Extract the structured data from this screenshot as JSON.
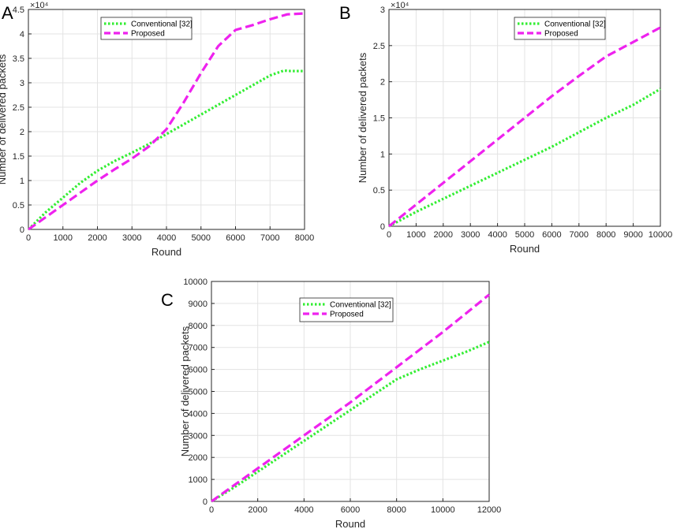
{
  "chart_data": [
    {
      "panel": "A",
      "type": "line",
      "xlabel": "Round",
      "ylabel": "Number of delivered packets",
      "xlim": [
        0,
        8000
      ],
      "ylim": [
        0,
        45000
      ],
      "y_exponent": "×10⁴",
      "xticks": [
        "0",
        "1000",
        "2000",
        "3000",
        "4000",
        "5000",
        "6000",
        "7000",
        "8000"
      ],
      "yticks": [
        "0",
        "0.5",
        "1",
        "1.5",
        "2",
        "2.5",
        "3",
        "3.5",
        "4",
        "4.5"
      ],
      "grid": true,
      "legend_position": "top-center",
      "series": [
        {
          "name": "Conventional [32]",
          "color": "#33ee33",
          "style": "dotted",
          "x": [
            0,
            500,
            1000,
            1500,
            2000,
            2500,
            3000,
            3500,
            4000,
            4500,
            5000,
            5500,
            6000,
            6500,
            7000,
            7400,
            7600,
            8000
          ],
          "y": [
            0,
            3500,
            6500,
            9500,
            12000,
            14000,
            15700,
            17500,
            19500,
            21500,
            23500,
            25500,
            27500,
            29500,
            31500,
            32500,
            32400,
            32400
          ]
        },
        {
          "name": "Proposed",
          "color": "#ee22ee",
          "style": "dashed",
          "x": [
            0,
            500,
            1000,
            1500,
            2000,
            2500,
            3000,
            3500,
            4000,
            4500,
            5000,
            5500,
            6000,
            6500,
            7000,
            7500,
            8000
          ],
          "y": [
            0,
            2500,
            5000,
            7500,
            10000,
            12300,
            14500,
            17000,
            20500,
            26000,
            32000,
            37500,
            40800,
            41800,
            43000,
            44000,
            44200
          ]
        }
      ]
    },
    {
      "panel": "B",
      "type": "line",
      "xlabel": "Round",
      "ylabel": "Number of delivered packets",
      "xlim": [
        0,
        10000
      ],
      "ylim": [
        0,
        30000
      ],
      "y_exponent": "×10⁴",
      "xticks": [
        "0",
        "1000",
        "2000",
        "3000",
        "4000",
        "5000",
        "6000",
        "7000",
        "8000",
        "9000",
        "10000"
      ],
      "yticks": [
        "0",
        "0.5",
        "1",
        "1.5",
        "2",
        "2.5",
        "3"
      ],
      "grid": true,
      "legend_position": "top-right",
      "series": [
        {
          "name": "Conventional [32]",
          "color": "#33ee33",
          "style": "dotted",
          "x": [
            0,
            1000,
            2000,
            3000,
            4000,
            5000,
            6000,
            7000,
            8000,
            9000,
            10000
          ],
          "y": [
            0,
            2000,
            3800,
            5600,
            7400,
            9200,
            11000,
            13000,
            15000,
            16800,
            19000
          ]
        },
        {
          "name": "Proposed",
          "color": "#ee22ee",
          "style": "dashed",
          "x": [
            0,
            1000,
            2000,
            3000,
            4000,
            5000,
            6000,
            7000,
            8000,
            9000,
            10000
          ],
          "y": [
            0,
            3000,
            6000,
            9000,
            12000,
            15000,
            18000,
            20800,
            23500,
            25500,
            27500
          ]
        }
      ]
    },
    {
      "panel": "C",
      "type": "line",
      "xlabel": "Round",
      "ylabel": "Number of delivered packets",
      "xlim": [
        0,
        12000
      ],
      "ylim": [
        0,
        10000
      ],
      "y_exponent": "",
      "xticks": [
        "0",
        "2000",
        "4000",
        "6000",
        "8000",
        "10000",
        "12000"
      ],
      "yticks": [
        "0",
        "1000",
        "2000",
        "3000",
        "4000",
        "5000",
        "6000",
        "7000",
        "8000",
        "9000",
        "10000"
      ],
      "grid": true,
      "legend_position": "top-left",
      "series": [
        {
          "name": "Conventional [32]",
          "color": "#33ee33",
          "style": "dotted",
          "x": [
            0,
            1000,
            2000,
            3000,
            4000,
            5000,
            6000,
            7000,
            8000,
            9000,
            10000,
            11000,
            12000
          ],
          "y": [
            0,
            650,
            1350,
            2050,
            2750,
            3450,
            4150,
            4850,
            5550,
            6000,
            6400,
            6800,
            7250
          ]
        },
        {
          "name": "Proposed",
          "color": "#ee22ee",
          "style": "dashed",
          "x": [
            0,
            1000,
            2000,
            3000,
            4000,
            5000,
            6000,
            7000,
            8000,
            9000,
            10000,
            11000,
            12000
          ],
          "y": [
            0,
            750,
            1500,
            2250,
            3000,
            3750,
            4500,
            5300,
            6100,
            6900,
            7700,
            8550,
            9400
          ]
        }
      ]
    }
  ]
}
